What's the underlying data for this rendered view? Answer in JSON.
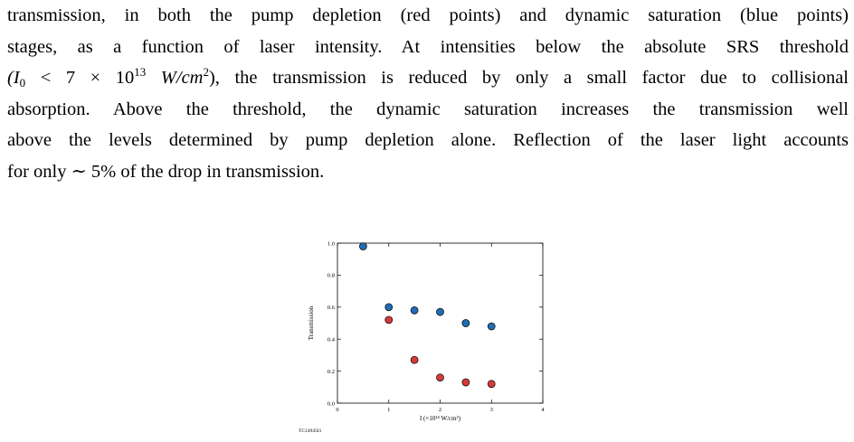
{
  "paragraph": {
    "line1": "transmission, in both the pump depletion (red points) and dynamic saturation (blue points)",
    "line2": "stages, as a function of laser intensity. At intensities below the absolute SRS threshold",
    "line3_open": "(I",
    "line3_sub": "0",
    "line3_mid": " < 7 × 10",
    "line3_sup": "13",
    "line3_unit": " W/cm",
    "line3_sup2": "2",
    "line3_rest": "), the transmission is reduced by only a small factor due to collisional",
    "line4": "absorption. Above the threshold, the dynamic saturation increases the transmission well",
    "line5": "above the levels determined by pump depletion alone. Reflection of the laser light accounts",
    "line6": "for only ∼ 5% of the drop in transmission."
  },
  "figure": {
    "tag": "TC14945I1"
  },
  "chart_data": {
    "type": "scatter",
    "ylabel": "Transmission",
    "xlabel": "I (×10¹⁴ W/cm²)",
    "xlim": [
      0,
      4
    ],
    "ylim": [
      0,
      1.0
    ],
    "xticks": [
      "0",
      "1",
      "2",
      "3",
      "4"
    ],
    "yticks": [
      "0.0",
      "0.2",
      "0.4",
      "0.6",
      "0.8",
      "1.0"
    ],
    "grid": false,
    "series": [
      {
        "color": "#1f6eb4",
        "points": [
          [
            0.5,
            0.98
          ],
          [
            1.0,
            0.6
          ],
          [
            1.5,
            0.58
          ],
          [
            2.0,
            0.57
          ],
          [
            2.5,
            0.5
          ],
          [
            3.0,
            0.48
          ]
        ]
      },
      {
        "color": "#d63a3a",
        "points": [
          [
            1.0,
            0.52
          ],
          [
            1.5,
            0.27
          ],
          [
            2.0,
            0.16
          ],
          [
            2.5,
            0.13
          ],
          [
            3.0,
            0.12
          ]
        ]
      }
    ]
  }
}
